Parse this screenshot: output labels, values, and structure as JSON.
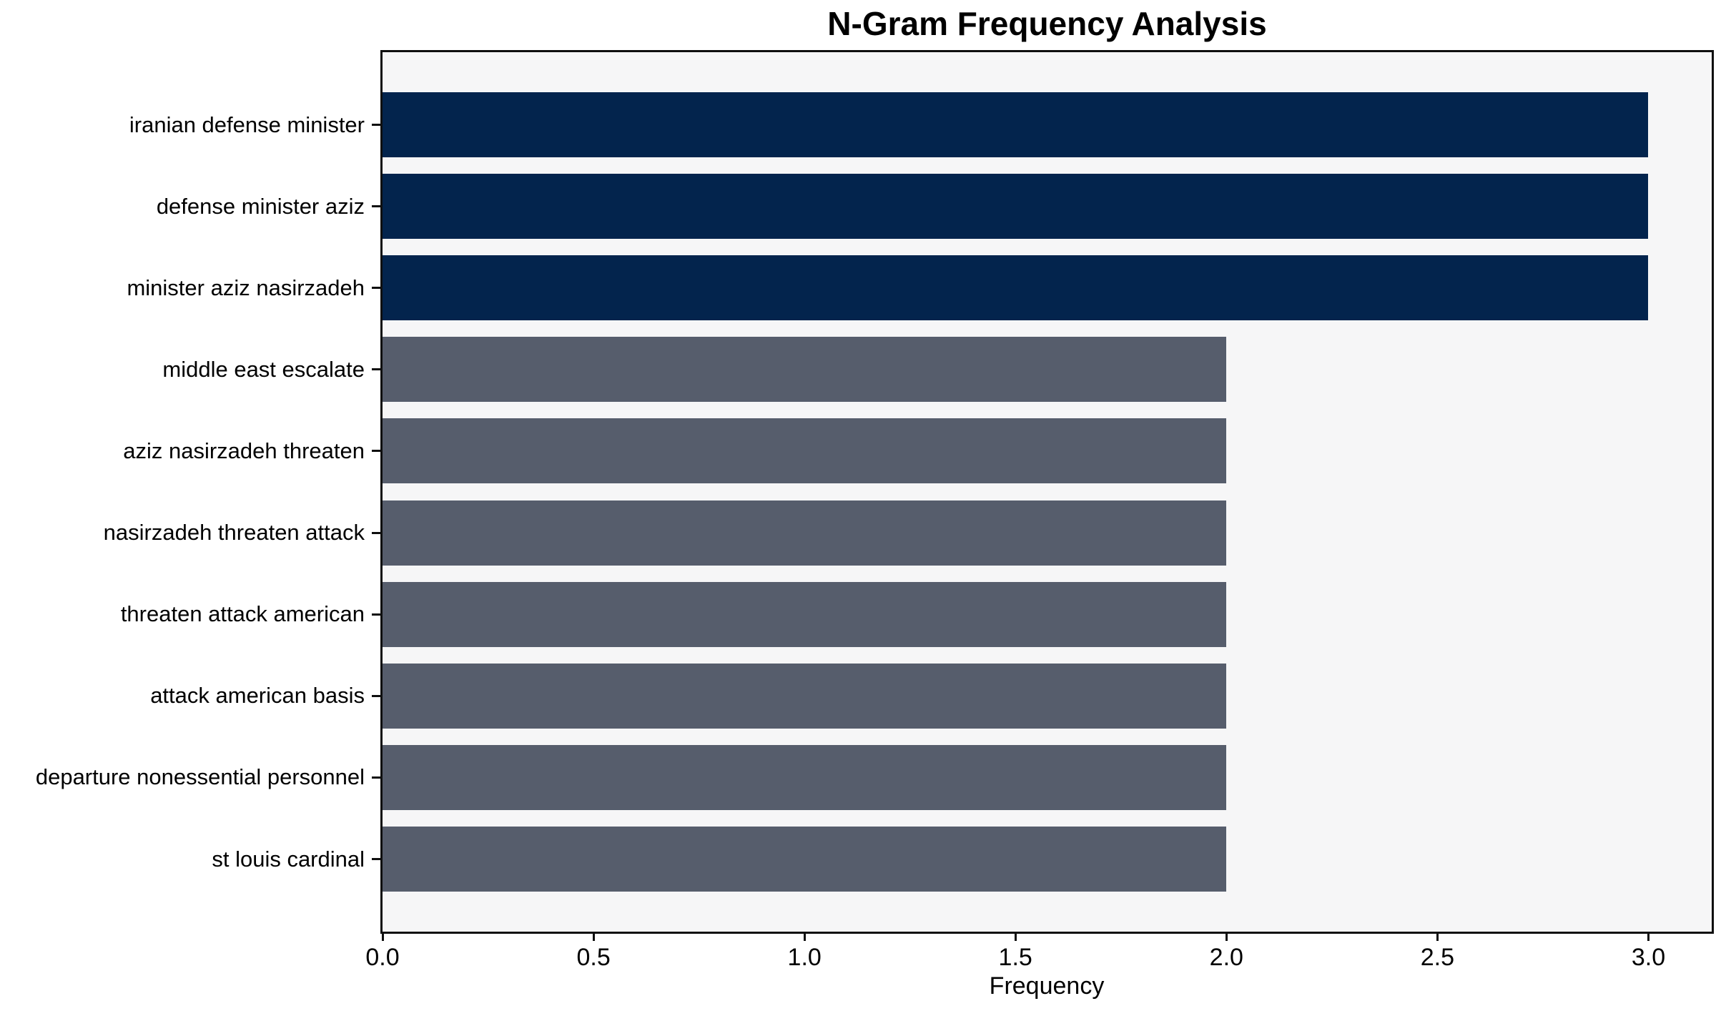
{
  "chart_data": {
    "type": "bar",
    "orientation": "horizontal",
    "title": "N-Gram Frequency Analysis",
    "xlabel": "Frequency",
    "ylabel": "",
    "categories": [
      "iranian defense minister",
      "defense minister aziz",
      "minister aziz nasirzadeh",
      "middle east escalate",
      "aziz nasirzadeh threaten",
      "nasirzadeh threaten attack",
      "threaten attack american",
      "attack american basis",
      "departure nonessential personnel",
      "st louis cardinal"
    ],
    "values": [
      3,
      3,
      3,
      2,
      2,
      2,
      2,
      2,
      2,
      2
    ],
    "bar_colors": [
      "#03244d",
      "#03244d",
      "#03244d",
      "#565d6c",
      "#565d6c",
      "#565d6c",
      "#565d6c",
      "#565d6c",
      "#565d6c",
      "#565d6c"
    ],
    "xlim": [
      0,
      3.15
    ],
    "xticks": [
      0.0,
      0.5,
      1.0,
      1.5,
      2.0,
      2.5,
      3.0
    ],
    "xtick_labels": [
      "0.0",
      "0.5",
      "1.0",
      "1.5",
      "2.0",
      "2.5",
      "3.0"
    ],
    "grid": false,
    "legend_position": "none",
    "colors": {
      "high_value_bar": "#03244d",
      "low_value_bar": "#565d6c",
      "plot_background": "#f6f6f7",
      "figure_background": "#ffffff",
      "spine": "#0f0f0f",
      "text": "#000000"
    }
  }
}
